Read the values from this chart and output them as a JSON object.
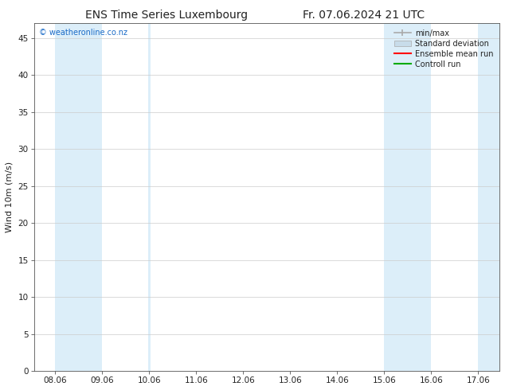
{
  "title_left": "ENS Time Series Luxembourg",
  "title_right": "Fr. 07.06.2024 21 UTC",
  "ylabel": "Wind 10m (m/s)",
  "watermark": "© weatheronline.co.nz",
  "x_tick_labels": [
    "08.06",
    "09.06",
    "10.06",
    "11.06",
    "12.06",
    "13.06",
    "14.06",
    "15.06",
    "16.06",
    "17.06"
  ],
  "x_tick_positions": [
    0,
    1,
    2,
    3,
    4,
    5,
    6,
    7,
    8,
    9
  ],
  "ylim": [
    0,
    47
  ],
  "yticks": [
    0,
    5,
    10,
    15,
    20,
    25,
    30,
    35,
    40,
    45
  ],
  "background_color": "#ffffff",
  "plot_bg_color": "#ffffff",
  "shade_color": "#dceef9",
  "legend_entries": [
    "min/max",
    "Standard deviation",
    "Ensemble mean run",
    "Controll run"
  ],
  "minmax_color": "#aaaaaa",
  "std_color": "#c8dcea",
  "mean_color": "#ff0000",
  "control_color": "#00aa00",
  "font_color": "#222222",
  "title_fontsize": 10,
  "tick_fontsize": 7.5,
  "ylabel_fontsize": 8,
  "watermark_color": "#1a6bc7",
  "band_intervals": [
    [
      0.0,
      1.0
    ],
    [
      7.0,
      8.0
    ],
    [
      9.0,
      9.45
    ]
  ],
  "narrow_band_intervals": [
    [
      1.97,
      2.03
    ]
  ],
  "xlim": [
    -0.45,
    9.45
  ]
}
